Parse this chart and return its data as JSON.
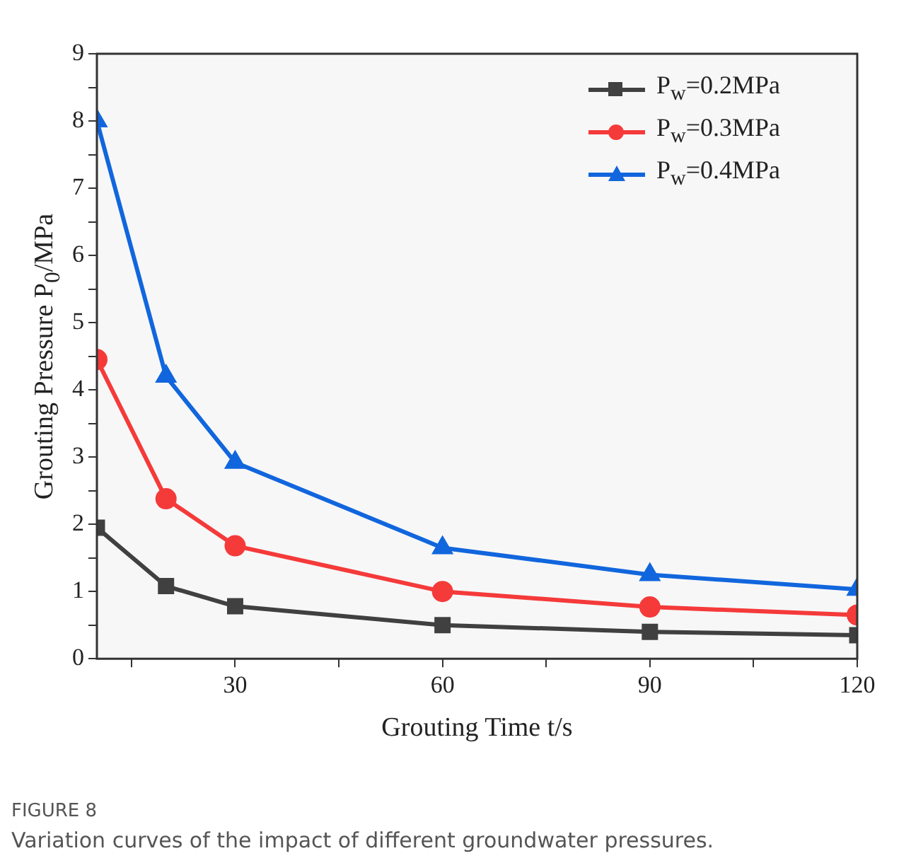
{
  "chart_data": {
    "type": "line",
    "xlabel": "Grouting Time t/s",
    "ylabel": "Grouting Pressure P$_{0}$/MPa",
    "x": [
      10,
      20,
      30,
      60,
      90,
      120
    ],
    "xlim": [
      10,
      120
    ],
    "xticks": [
      {
        "value": 15,
        "label": null
      },
      30,
      {
        "value": 45,
        "label": null
      },
      60,
      {
        "value": 75,
        "label": null
      },
      90,
      {
        "value": 105,
        "label": null
      },
      120
    ],
    "ylim": [
      0,
      9
    ],
    "yticks": [
      0,
      {
        "value": 0.5,
        "label": null
      },
      1,
      {
        "value": 1.5,
        "label": null
      },
      2,
      {
        "value": 2.5,
        "label": null
      },
      3,
      {
        "value": 3.5,
        "label": null
      },
      4,
      {
        "value": 4.5,
        "label": null
      },
      5,
      {
        "value": 5.5,
        "label": null
      },
      6,
      {
        "value": 6.5,
        "label": null
      },
      7,
      {
        "value": 7.5,
        "label": null
      },
      8,
      {
        "value": 8.5,
        "label": null
      },
      9
    ],
    "grid": false,
    "legend": "top right",
    "line_style": "solid",
    "series": [
      {
        "name": "P$_{w}$=0.2MPa",
        "color": "#404040",
        "marker": "square",
        "values": [
          1.95,
          1.08,
          0.78,
          0.5,
          0.4,
          0.35
        ]
      },
      {
        "name": "P$_{w}$=0.3MPa",
        "color": "#f53a3a",
        "marker": "circle",
        "values": [
          4.45,
          2.38,
          1.68,
          1.0,
          0.77,
          0.65
        ]
      },
      {
        "name": "P$_{w}$=0.4MPa",
        "color": "#1166dd",
        "marker": "triangle",
        "values": [
          8.0,
          4.2,
          2.92,
          1.65,
          1.25,
          1.03
        ]
      }
    ],
    "annotations": [
      "FIGURE 8",
      "Variation curves of the impact of different groundwater pressures."
    ]
  }
}
